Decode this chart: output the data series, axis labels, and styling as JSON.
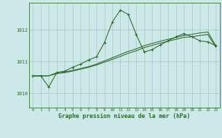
{
  "bg_color": "#cce8e8",
  "grid_color": "#a8c8b8",
  "line_color": "#2d6b2d",
  "marker_color": "#2d6b2d",
  "xlabel": "Graphe pression niveau de la mer (hPa)",
  "xlim": [
    -0.5,
    23.5
  ],
  "ylim": [
    1009.55,
    1012.85
  ],
  "yticks": [
    1010,
    1011,
    1012
  ],
  "xticks": [
    0,
    1,
    2,
    3,
    4,
    5,
    6,
    7,
    8,
    9,
    10,
    11,
    12,
    13,
    14,
    15,
    16,
    17,
    18,
    19,
    20,
    21,
    22,
    23
  ],
  "series1_x": [
    0,
    1,
    2,
    3,
    4,
    5,
    6,
    7,
    8,
    9,
    10,
    11,
    12,
    13,
    14,
    15,
    16,
    17,
    18,
    19,
    20,
    21,
    22,
    23
  ],
  "series1_y": [
    1010.55,
    1010.55,
    1010.2,
    1010.65,
    1010.7,
    1010.82,
    1010.92,
    1011.05,
    1011.15,
    1011.6,
    1012.25,
    1012.62,
    1012.48,
    1011.85,
    1011.3,
    1011.38,
    1011.52,
    1011.65,
    1011.78,
    1011.88,
    1011.78,
    1011.65,
    1011.62,
    1011.5
  ],
  "series2_x": [
    0,
    1,
    2,
    3,
    4,
    5,
    6,
    7,
    8,
    9,
    10,
    11,
    12,
    13,
    14,
    15,
    16,
    17,
    18,
    19,
    20,
    21,
    22,
    23
  ],
  "series2_y": [
    1010.55,
    1010.55,
    1010.55,
    1010.65,
    1010.68,
    1010.72,
    1010.78,
    1010.84,
    1010.92,
    1011.02,
    1011.12,
    1011.22,
    1011.32,
    1011.4,
    1011.5,
    1011.57,
    1011.64,
    1011.7,
    1011.76,
    1011.82,
    1011.86,
    1011.9,
    1011.93,
    1011.5
  ],
  "series3_x": [
    0,
    1,
    2,
    3,
    4,
    5,
    6,
    7,
    8,
    9,
    10,
    11,
    12,
    13,
    14,
    15,
    16,
    17,
    18,
    19,
    20,
    21,
    22,
    23
  ],
  "series3_y": [
    1010.55,
    1010.55,
    1010.55,
    1010.62,
    1010.65,
    1010.7,
    1010.76,
    1010.82,
    1010.89,
    1010.98,
    1011.07,
    1011.16,
    1011.26,
    1011.34,
    1011.44,
    1011.51,
    1011.58,
    1011.64,
    1011.7,
    1011.76,
    1011.78,
    1011.82,
    1011.85,
    1011.45
  ]
}
